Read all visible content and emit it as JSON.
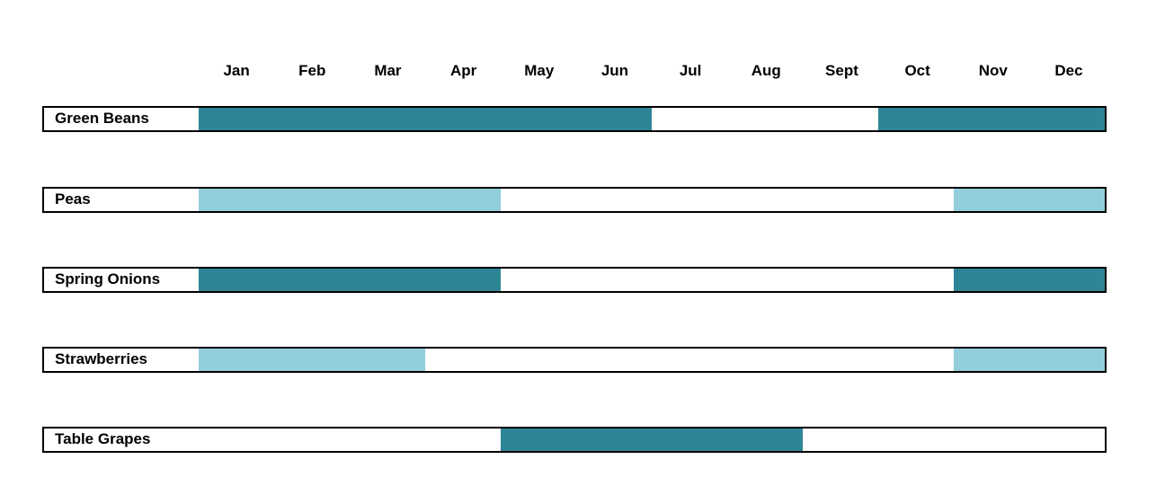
{
  "chart_data": {
    "type": "bar",
    "subtype": "seasonality-gantt",
    "title": "",
    "xlabel": "",
    "ylabel": "",
    "grid": false,
    "legend": false,
    "categories": [
      "Jan",
      "Feb",
      "Mar",
      "Apr",
      "May",
      "Jun",
      "Jul",
      "Aug",
      "Sept",
      "Oct",
      "Nov",
      "Dec"
    ],
    "colors": {
      "dark": "#2E8596",
      "light": "#92CDDC",
      "border": "#000000",
      "background": "#FFFFFF"
    },
    "rows": [
      {
        "label": "Green Beans",
        "shade": "dark",
        "segments": [
          {
            "start_month": "Jan",
            "end_month": "Jun",
            "start": 0,
            "end": 6
          },
          {
            "start_month": "Oct",
            "end_month": "Dec",
            "start": 9,
            "end": 12
          }
        ]
      },
      {
        "label": "Peas",
        "shade": "light",
        "segments": [
          {
            "start_month": "Jan",
            "end_month": "Apr",
            "start": 0,
            "end": 4
          },
          {
            "start_month": "Nov",
            "end_month": "Dec",
            "start": 10,
            "end": 12
          }
        ]
      },
      {
        "label": "Spring Onions",
        "shade": "dark",
        "segments": [
          {
            "start_month": "Jan",
            "end_month": "Apr",
            "start": 0,
            "end": 4
          },
          {
            "start_month": "Nov",
            "end_month": "Dec",
            "start": 10,
            "end": 12
          }
        ]
      },
      {
        "label": "Strawberries",
        "shade": "light",
        "segments": [
          {
            "start_month": "Jan",
            "end_month": "Mar",
            "start": 0,
            "end": 3
          },
          {
            "start_month": "Nov",
            "end_month": "Dec",
            "start": 10,
            "end": 12
          }
        ]
      },
      {
        "label": "Table Grapes",
        "shade": "dark",
        "segments": [
          {
            "start_month": "May",
            "end_month": "Aug",
            "start": 4,
            "end": 8
          }
        ]
      }
    ]
  }
}
